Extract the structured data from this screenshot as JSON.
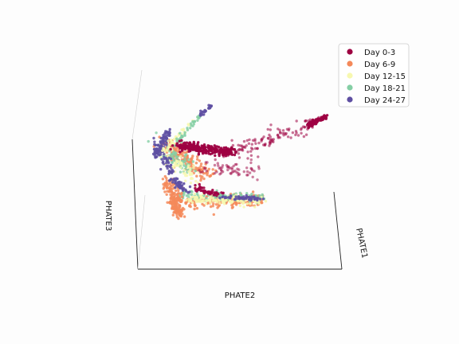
{
  "chart_data": {
    "type": "scatter",
    "projection": "3d",
    "grid": false,
    "legend_placement": "top-right",
    "axes": {
      "x": "PHATE1",
      "y": "PHATE2",
      "z": "PHATE3"
    },
    "series": [
      {
        "name": "Day 0-3",
        "color": "#9e0142"
      },
      {
        "name": "Day 6-9",
        "color": "#f4895a"
      },
      {
        "name": "Day 12-15",
        "color": "#f7f8b0"
      },
      {
        "name": "Day 18-21",
        "color": "#85cfa5"
      },
      {
        "name": "Day 24-27",
        "color": "#5e4fa2"
      }
    ]
  }
}
